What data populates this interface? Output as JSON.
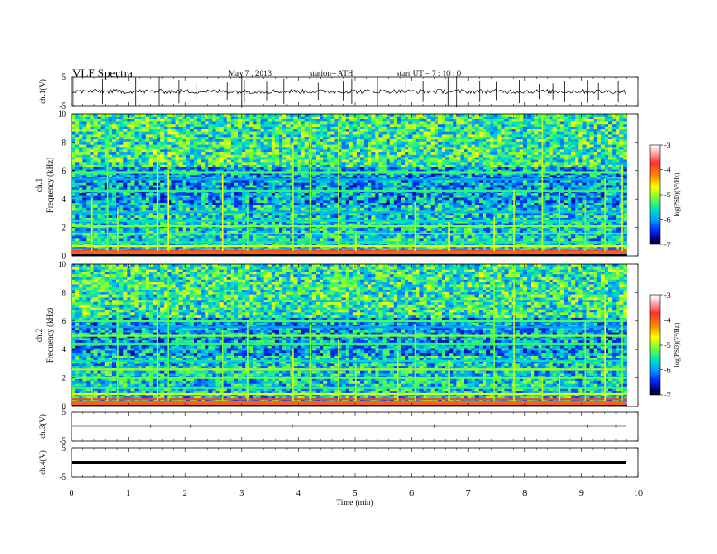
{
  "header": {
    "title": "VLF  Spectra",
    "date": "May 7  , 2013",
    "station": "station= ATH",
    "start": "start  UT  =   7  : 10 : 0"
  },
  "colorbar": {
    "label": "log(PSD)(V²/Hz)",
    "ticks": [
      "-3",
      "-4",
      "-5",
      "-6",
      "-7"
    ],
    "colors": [
      "#ffffff",
      "#ffc0c0",
      "#ff3030",
      "#ff9000",
      "#ffff00",
      "#60ff40",
      "#00e0c0",
      "#00a0ff",
      "#0030ff",
      "#000080",
      "#000000"
    ]
  },
  "chart_data": [
    {
      "type": "line",
      "name": "ch.1 waveform",
      "ylabel": "ch.1(V)",
      "ylim": [
        -5,
        5
      ],
      "y_ticks": [
        "5",
        "-5"
      ],
      "baseline": 0,
      "spikes_min": [
        0.03,
        0.55,
        1.13,
        1.55,
        1.9,
        2.2,
        2.75,
        3.0,
        3.05,
        3.45,
        3.75,
        4.35,
        4.8,
        4.95,
        5.4,
        5.9,
        6.2,
        6.65,
        6.8,
        7.2,
        7.5,
        7.9,
        8.25,
        8.5,
        8.7,
        9.1,
        9.3,
        9.65
      ],
      "color": "#000000"
    },
    {
      "type": "heatmap",
      "name": "ch.1 spectrogram",
      "ylabel": "Frequency  (kHz)",
      "channel_label": "ch.1",
      "xlim": [
        0,
        9.8
      ],
      "ylim": [
        0,
        10
      ],
      "y_ticks": [
        "0",
        "2",
        "4",
        "6",
        "8",
        "10"
      ],
      "zlabel": "log(PSD)(V²/Hz)",
      "zlim": [
        -7,
        -3
      ],
      "background_level": -5.8,
      "bands_khz": [
        {
          "f": 0.4,
          "level": -3.8
        },
        {
          "f": 0.7,
          "level": -4.8
        },
        {
          "f": 1.0,
          "level": -5.5
        },
        {
          "f": 1.6,
          "level": -5.3
        },
        {
          "f": 2.1,
          "level": -5.1
        },
        {
          "f": 2.5,
          "level": -5.6
        },
        {
          "f": 3.1,
          "level": -5.8
        },
        {
          "f": 4.6,
          "level": -5.4
        },
        {
          "f": 5.4,
          "level": -6.0
        },
        {
          "f": 5.9,
          "level": -5.3
        }
      ],
      "sferic_times_min": [
        0.35,
        0.62,
        0.8,
        1.5,
        1.7,
        2.65,
        3.1,
        3.9,
        4.2,
        4.7,
        5.0,
        5.75,
        6.05,
        6.65,
        7.45,
        7.8,
        8.3,
        8.6,
        9.05,
        9.4,
        9.7
      ]
    },
    {
      "type": "heatmap",
      "name": "ch.2 spectrogram",
      "ylabel": "Frequency  (kHz)",
      "channel_label": "ch.2",
      "xlim": [
        0,
        9.8
      ],
      "ylim": [
        0,
        10
      ],
      "y_ticks": [
        "0",
        "2",
        "4",
        "6",
        "8",
        "10"
      ],
      "zlabel": "log(PSD)(V²/Hz)",
      "zlim": [
        -7,
        -3
      ],
      "background_level": -5.8,
      "bands_khz": [
        {
          "f": 0.5,
          "level": -3.8
        },
        {
          "f": 0.9,
          "level": -4.8
        },
        {
          "f": 1.3,
          "level": -5.4
        },
        {
          "f": 2.0,
          "level": -5.2
        },
        {
          "f": 2.6,
          "level": -5.0
        },
        {
          "f": 3.2,
          "level": -5.6
        },
        {
          "f": 4.4,
          "level": -5.4
        },
        {
          "f": 5.0,
          "level": -5.1
        },
        {
          "f": 5.6,
          "level": -6.0
        },
        {
          "f": 6.0,
          "level": -5.3
        }
      ],
      "sferic_times_min": [
        0.35,
        0.62,
        0.8,
        1.5,
        1.7,
        2.65,
        3.1,
        3.9,
        4.2,
        4.7,
        5.0,
        5.75,
        6.05,
        6.65,
        7.45,
        7.8,
        8.3,
        8.6,
        9.05,
        9.4,
        9.7
      ]
    },
    {
      "type": "line",
      "name": "ch.3 waveform",
      "ylabel": "ch.3(V)",
      "ylim": [
        -5,
        5
      ],
      "y_ticks": [
        "5",
        "-5"
      ],
      "baseline": 0,
      "spikes_min": [
        0.5,
        1.4,
        2.1,
        3.9,
        6.4,
        9.1,
        9.6
      ],
      "color": "#000000"
    },
    {
      "type": "line",
      "name": "ch.4 waveform",
      "ylabel": "ch.4(V)",
      "ylim": [
        -5,
        5
      ],
      "y_ticks": [
        "5",
        "-5"
      ],
      "baseline": 0,
      "spikes_min": [],
      "color": "#000000"
    }
  ],
  "x_axis": {
    "label": "Time  (min)",
    "ticks": [
      "0",
      "1",
      "2",
      "3",
      "4",
      "5",
      "6",
      "7",
      "8",
      "9",
      "10"
    ],
    "xlim": [
      0,
      10
    ]
  }
}
